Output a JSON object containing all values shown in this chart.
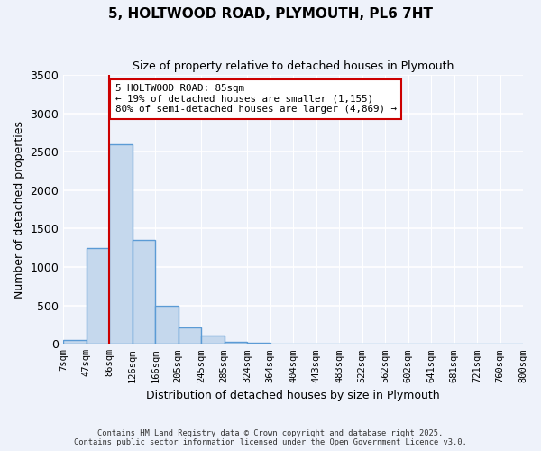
{
  "title": "5, HOLTWOOD ROAD, PLYMOUTH, PL6 7HT",
  "subtitle": "Size of property relative to detached houses in Plymouth",
  "bar_values": [
    50,
    1250,
    2600,
    1350,
    500,
    210,
    110,
    30,
    10,
    5,
    2,
    1,
    0,
    0,
    0,
    0,
    0,
    0,
    0,
    0
  ],
  "bin_labels": [
    "7sqm",
    "47sqm",
    "86sqm",
    "126sqm",
    "166sqm",
    "205sqm",
    "245sqm",
    "285sqm",
    "324sqm",
    "364sqm",
    "404sqm",
    "443sqm",
    "483sqm",
    "522sqm",
    "562sqm",
    "602sqm",
    "641sqm",
    "681sqm",
    "721sqm",
    "760sqm",
    "800sqm"
  ],
  "bar_color": "#c5d8ed",
  "bar_edge_color": "#5b9bd5",
  "bar_edge_width": 1.0,
  "background_color": "#eef2fa",
  "grid_color": "#ffffff",
  "ylabel": "Number of detached properties",
  "xlabel": "Distribution of detached houses by size in Plymouth",
  "ylim": [
    0,
    3500
  ],
  "yticks": [
    0,
    500,
    1000,
    1500,
    2000,
    2500,
    3000,
    3500
  ],
  "vline_x": 2,
  "vline_color": "#cc0000",
  "annotation_title": "5 HOLTWOOD ROAD: 85sqm",
  "annotation_line1": "← 19% of detached houses are smaller (1,155)",
  "annotation_line2": "80% of semi-detached houses are larger (4,869) →",
  "annotation_box_color": "#ffffff",
  "annotation_box_edge": "#cc0000",
  "footer_line1": "Contains HM Land Registry data © Crown copyright and database right 2025.",
  "footer_line2": "Contains public sector information licensed under the Open Government Licence v3.0."
}
